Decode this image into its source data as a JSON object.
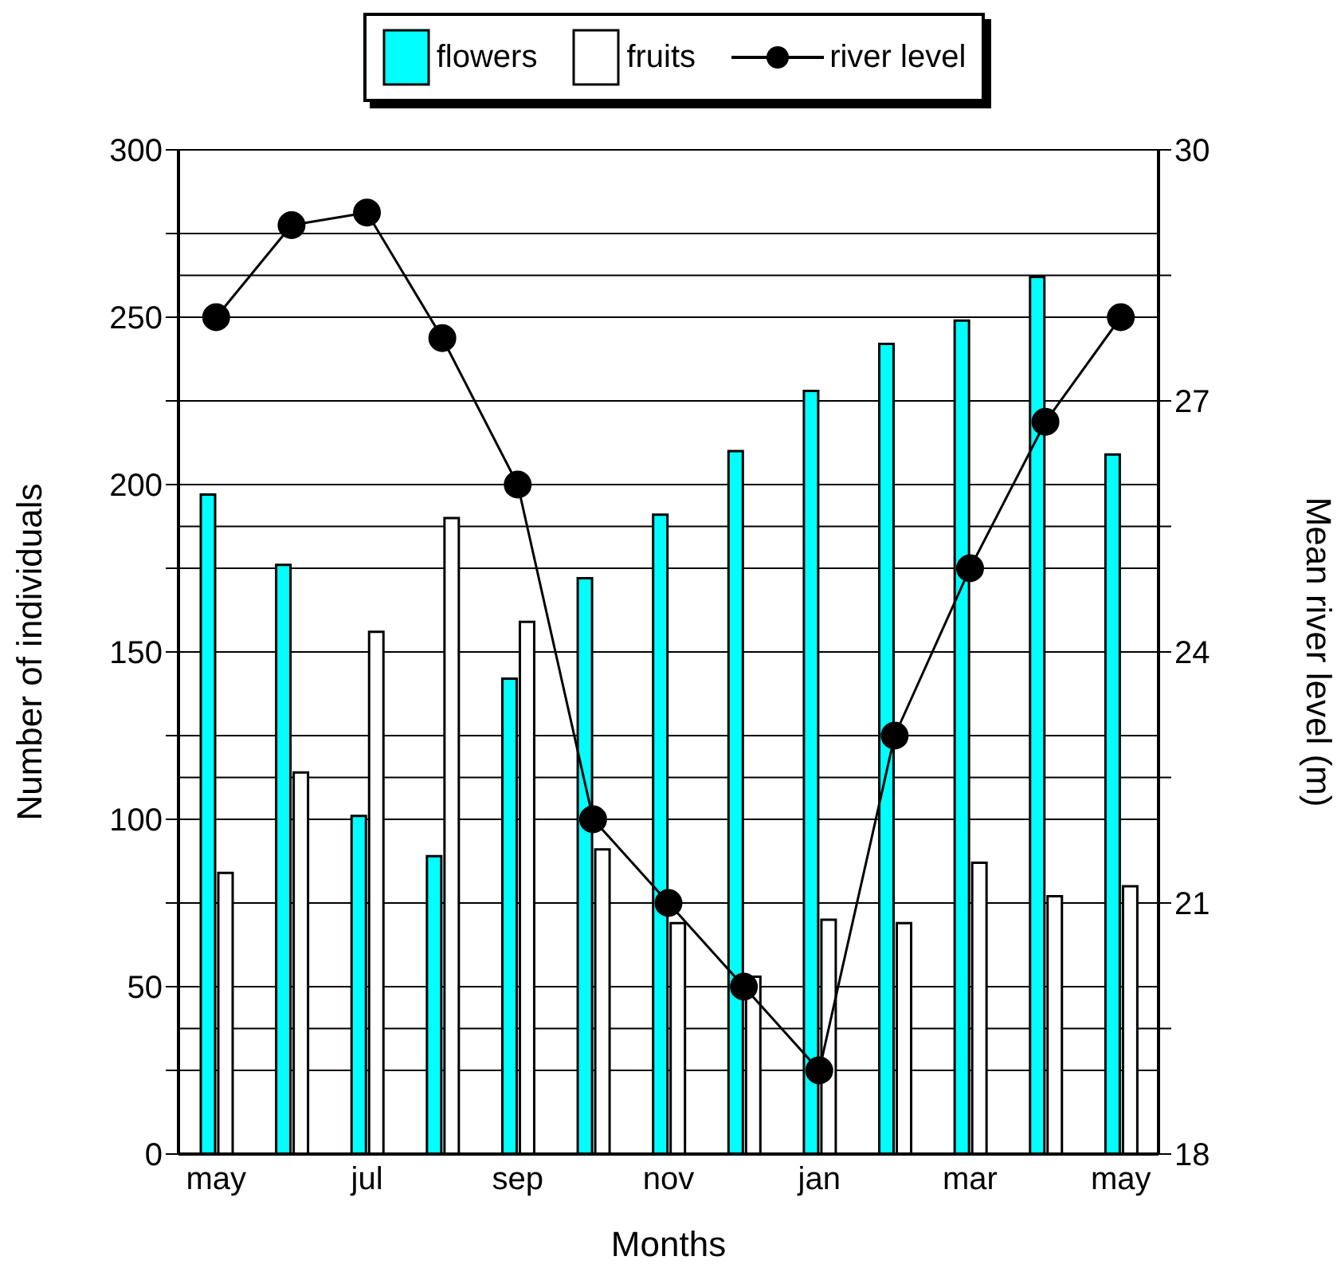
{
  "chart_data": {
    "type": "bar",
    "xlabel": "Months",
    "ylabel": "Number of individuals",
    "y2label": "Mean river level (m)",
    "categories": [
      "may",
      null,
      "jul",
      null,
      "sep",
      null,
      "nov",
      null,
      "jan",
      null,
      "mar",
      null,
      "may"
    ],
    "series": [
      {
        "name": "flowers",
        "color": "#00ffff",
        "values": [
          197,
          176,
          101,
          89,
          142,
          172,
          191,
          210,
          228,
          242,
          249,
          262,
          209
        ]
      },
      {
        "name": "fruits",
        "color": "#ffffff",
        "values": [
          84,
          114,
          156,
          190,
          159,
          91,
          69,
          53,
          70,
          69,
          87,
          77,
          80
        ]
      },
      {
        "name": "river level",
        "type": "line",
        "axis": "y2",
        "color": "#000000",
        "marker": "circle",
        "values": [
          28,
          29.1,
          29.25,
          27.75,
          26,
          22,
          21,
          20,
          19,
          23,
          25,
          26.75,
          28
        ]
      }
    ],
    "ylim": [
      0,
      300
    ],
    "yticks": [
      0,
      {
        "value": 25,
        "label": null
      },
      50,
      {
        "value": 75,
        "label": null
      },
      100,
      {
        "value": 125,
        "label": null
      },
      150,
      {
        "value": 175,
        "label": null
      },
      200,
      {
        "value": 225,
        "label": null
      },
      250,
      {
        "value": 275,
        "label": null
      },
      300
    ],
    "y2lim": [
      18,
      30
    ],
    "y2ticks": [
      18,
      {
        "value": 19.5,
        "label": null
      },
      21,
      {
        "value": 22.5,
        "label": null
      },
      24,
      {
        "value": 25.5,
        "label": null
      },
      27,
      {
        "value": 28.5,
        "label": null
      },
      30
    ],
    "grid": "y",
    "legend": "top"
  }
}
